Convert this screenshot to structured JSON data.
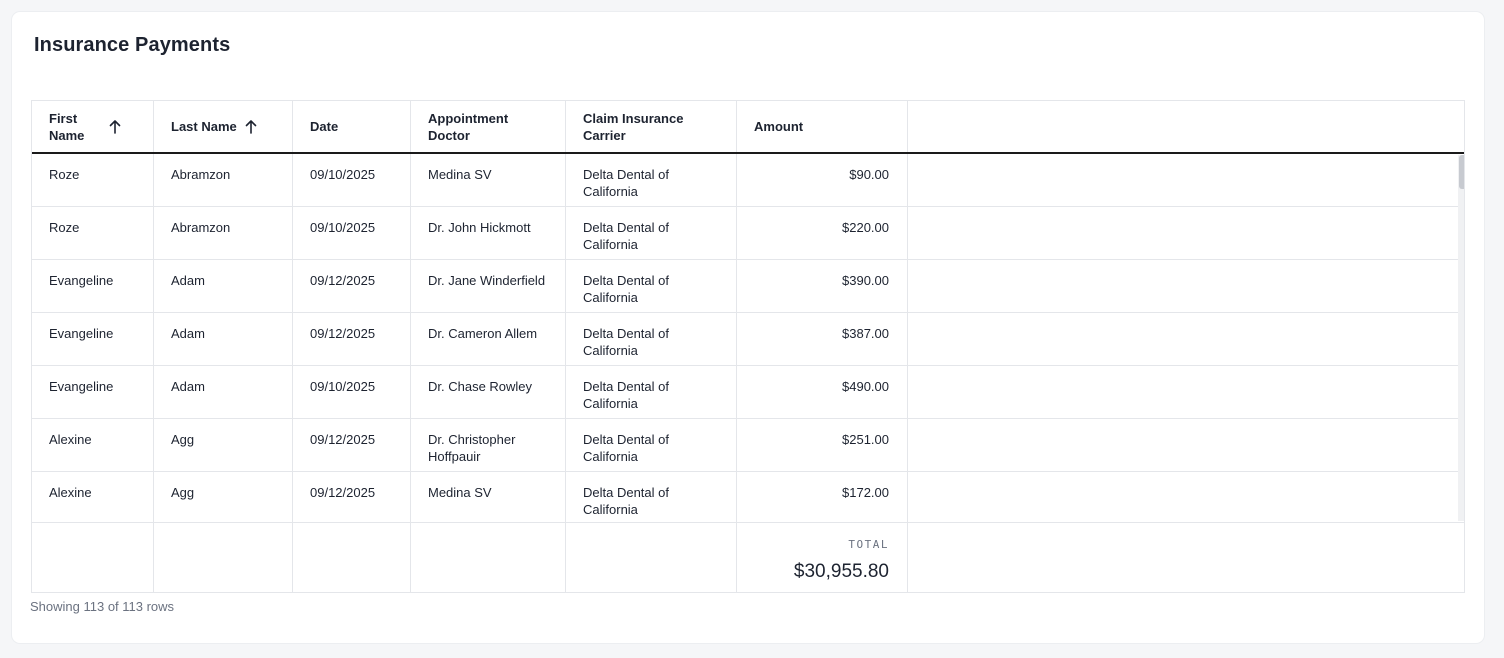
{
  "page": {
    "title": "Insurance Payments"
  },
  "table": {
    "columns": [
      {
        "key": "first_name",
        "label": "First Name",
        "sortable": true,
        "sort_icon": "arrow-up-icon"
      },
      {
        "key": "last_name",
        "label": "Last Name",
        "sortable": true,
        "sort_icon": "arrow-up-icon"
      },
      {
        "key": "date",
        "label": "Date"
      },
      {
        "key": "appointment_doctor",
        "label": "Appointment Doctor"
      },
      {
        "key": "claim_insurance_carrier",
        "label": "Claim Insurance Carrier"
      },
      {
        "key": "amount",
        "label": "Amount"
      }
    ],
    "rows": [
      {
        "first_name": "Roze",
        "last_name": "Abramzon",
        "date": "09/10/2025",
        "appointment_doctor": "Medina SV",
        "claim_insurance_carrier": "Delta Dental of California",
        "amount": "$90.00"
      },
      {
        "first_name": "Roze",
        "last_name": "Abramzon",
        "date": "09/10/2025",
        "appointment_doctor": "Dr. John Hickmott",
        "claim_insurance_carrier": "Delta Dental of California",
        "amount": "$220.00"
      },
      {
        "first_name": "Evangeline",
        "last_name": "Adam",
        "date": "09/12/2025",
        "appointment_doctor": "Dr. Jane Winderfield",
        "claim_insurance_carrier": "Delta Dental of California",
        "amount": "$390.00"
      },
      {
        "first_name": "Evangeline",
        "last_name": "Adam",
        "date": "09/12/2025",
        "appointment_doctor": "Dr. Cameron Allem",
        "claim_insurance_carrier": "Delta Dental of California",
        "amount": "$387.00"
      },
      {
        "first_name": "Evangeline",
        "last_name": "Adam",
        "date": "09/10/2025",
        "appointment_doctor": "Dr. Chase Rowley",
        "claim_insurance_carrier": "Delta Dental of California",
        "amount": "$490.00"
      },
      {
        "first_name": "Alexine",
        "last_name": "Agg",
        "date": "09/12/2025",
        "appointment_doctor": "Dr. Christopher Hoffpauir",
        "claim_insurance_carrier": "Delta Dental of California",
        "amount": "$251.00"
      },
      {
        "first_name": "Alexine",
        "last_name": "Agg",
        "date": "09/12/2025",
        "appointment_doctor": "Medina SV",
        "claim_insurance_carrier": "Delta Dental of California",
        "amount": "$172.00"
      }
    ],
    "footer": {
      "total_label": "TOTAL",
      "total_value": "$30,955.80"
    }
  },
  "status": {
    "text": "Showing 113 of 113 rows"
  }
}
